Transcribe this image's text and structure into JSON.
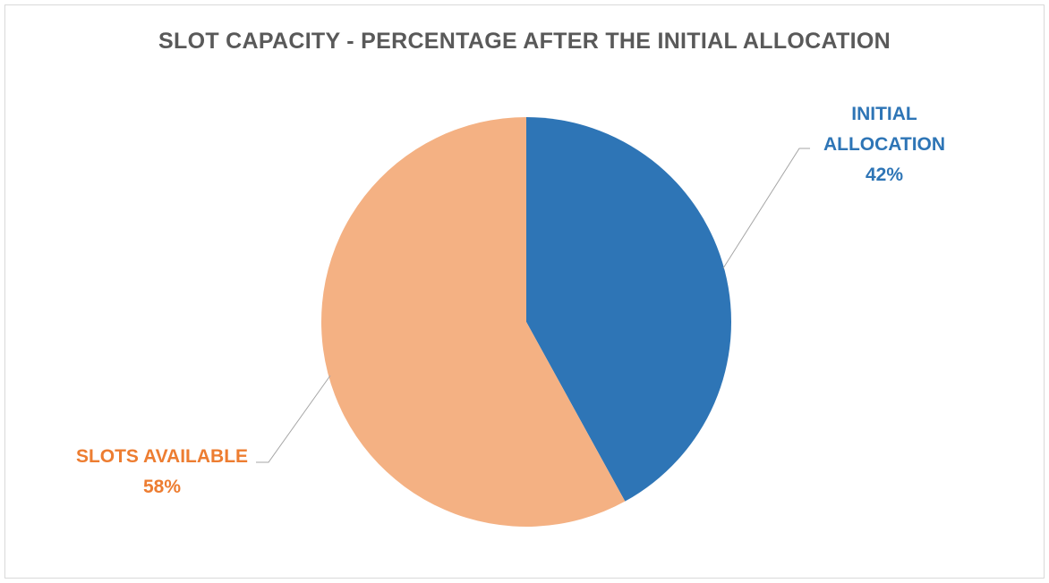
{
  "chart_data": {
    "type": "pie",
    "title": "SLOT CAPACITY - PERCENTAGE AFTER THE INITIAL ALLOCATION",
    "slices": [
      {
        "label_lines": [
          "INITIAL",
          "ALLOCATION"
        ],
        "value": 42,
        "value_label": "42%",
        "color": "#2e75b6"
      },
      {
        "label_lines": [
          "SLOTS AVAILABLE"
        ],
        "value": 58,
        "value_label": "58%",
        "color": "#f4b183"
      }
    ],
    "label_colors": [
      "#2e75b6",
      "#ed7d31"
    ],
    "start_angle": "12 o'clock",
    "direction": "clockwise",
    "leader_lines": true,
    "legend": "none"
  }
}
